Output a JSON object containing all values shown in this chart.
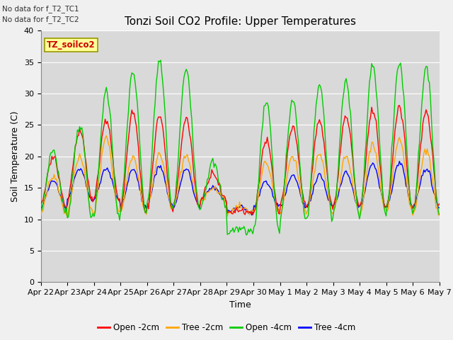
{
  "title": "Tonzi Soil CO2 Profile: Upper Temperatures",
  "xlabel": "Time",
  "ylabel": "Soil Temperature (C)",
  "ylim": [
    0,
    40
  ],
  "yticks": [
    0,
    5,
    10,
    15,
    20,
    25,
    30,
    35,
    40
  ],
  "note_lines": [
    "No data for f_T2_TC1",
    "No data for f_T2_TC2"
  ],
  "legend_label": "TZ_soilco2",
  "series_labels": [
    "Open -2cm",
    "Tree -2cm",
    "Open -4cm",
    "Tree -4cm"
  ],
  "series_colors": [
    "#ff0000",
    "#ffa500",
    "#00cc00",
    "#0000ff"
  ],
  "xtick_labels": [
    "Apr 22",
    "Apr 23",
    "Apr 24",
    "Apr 25",
    "Apr 26",
    "Apr 27",
    "Apr 28",
    "Apr 29",
    "Apr 30",
    "May 1",
    "May 2",
    "May 3",
    "May 4",
    "May 5",
    "May 6",
    "May 7"
  ],
  "background_color": "#f0f0f0",
  "plot_bg_color": "#d9d9d9",
  "grid_color": "#ffffff",
  "title_fontsize": 11,
  "axes_fontsize": 9,
  "tick_fontsize": 8
}
